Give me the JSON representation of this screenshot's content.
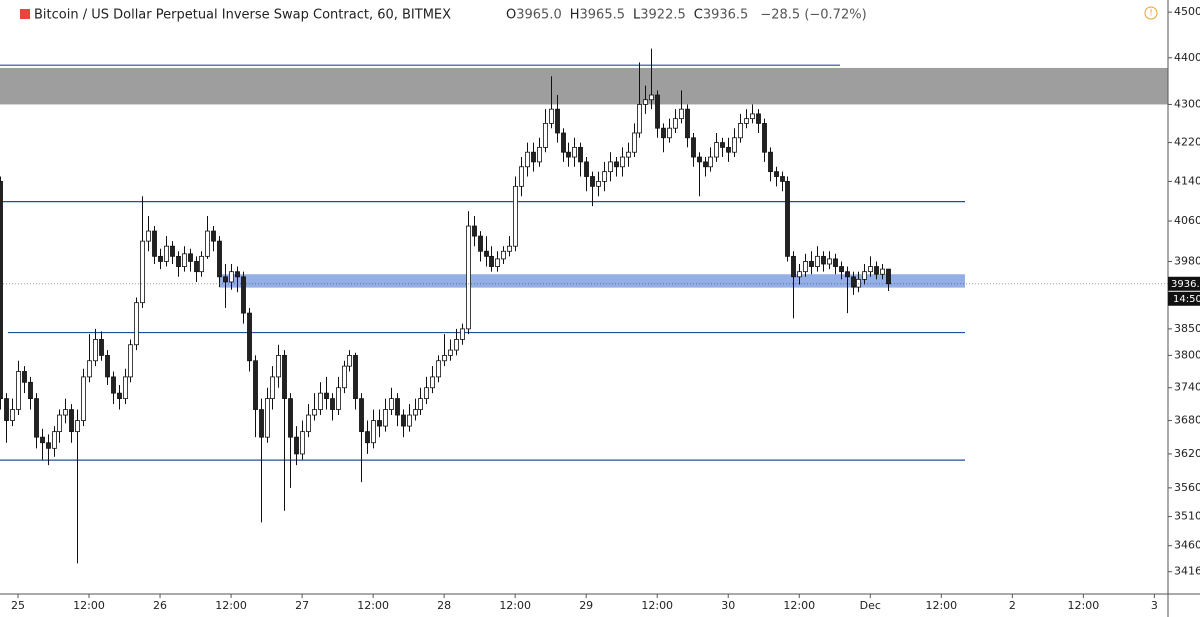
{
  "chart_data": {
    "type": "candlestick",
    "title": "Bitcoin / US Dollar Perpetual Inverse Swap Contract, 60, BITMEX",
    "ohlc_legend": [
      {
        "label": "O",
        "value": "3965.0"
      },
      {
        "label": "H",
        "value": "3965.5"
      },
      {
        "label": "L",
        "value": "3922.5"
      },
      {
        "label": "C",
        "value": "3936.5"
      }
    ],
    "change": "−28.5 (−0.72%)",
    "countdown": "14:50",
    "log_scale": true,
    "up_color": "#ffffff",
    "down_color": "#222222",
    "edge_color": "#111111",
    "level_color": "#1f4ea3",
    "zone_colors": [
      "#9e9e9e",
      "#94aee6"
    ],
    "levels": [
      4384,
      4099,
      3843,
      3609
    ],
    "zones": [
      [
        4300,
        4378
      ],
      [
        3929,
        3955
      ]
    ],
    "xlim": [
      -3.04,
      194.3
    ],
    "ylim": [
      3382,
      4527
    ],
    "xticks": [
      {
        "value": 0,
        "label": "25"
      },
      {
        "value": 12,
        "label": "12:00"
      },
      {
        "value": 24,
        "label": "26"
      },
      {
        "value": 36,
        "label": "12:00"
      },
      {
        "value": 48,
        "label": "27"
      },
      {
        "value": 60,
        "label": "12:00"
      },
      {
        "value": 72,
        "label": "28"
      },
      {
        "value": 84,
        "label": "12:00"
      },
      {
        "value": 96,
        "label": "29"
      },
      {
        "value": 108,
        "label": "12:00"
      },
      {
        "value": 120,
        "label": "30"
      },
      {
        "value": 132,
        "label": "12:00"
      },
      {
        "value": 144,
        "label": "Dec"
      },
      {
        "value": 156,
        "label": "12:00"
      },
      {
        "value": 168,
        "label": "2"
      },
      {
        "value": 180,
        "label": "12:00"
      },
      {
        "value": 192,
        "label": "3"
      }
    ],
    "yticks": [
      {
        "value": 4500,
        "label": "4500.0"
      },
      {
        "value": 4400,
        "label": "4400.0"
      },
      {
        "value": 4300,
        "label": "4300.0"
      },
      {
        "value": 4220,
        "label": "4220.0"
      },
      {
        "value": 4140,
        "label": "4140.0"
      },
      {
        "value": 4060,
        "label": "4060.0"
      },
      {
        "value": 3980,
        "label": "3980.0"
      },
      {
        "value": 3850,
        "label": "3850.0"
      },
      {
        "value": 3800,
        "label": "3800.0"
      },
      {
        "value": 3740,
        "label": "3740.0"
      },
      {
        "value": 3680,
        "label": "3680.0"
      },
      {
        "value": 3620,
        "label": "3620.0"
      },
      {
        "value": 3560,
        "label": "3560.0"
      },
      {
        "value": 3510,
        "label": "3510.0"
      },
      {
        "value": 3460,
        "label": "3460.0"
      },
      {
        "value": 3416,
        "label": "3416.0"
      }
    ],
    "x": [
      -3,
      -2,
      -1,
      0,
      1,
      2,
      3,
      4,
      5,
      6,
      7,
      8,
      9,
      10,
      11,
      12,
      13,
      14,
      15,
      16,
      17,
      18,
      19,
      20,
      21,
      22,
      23,
      24,
      25,
      26,
      27,
      28,
      29,
      30,
      31,
      32,
      33,
      34,
      35,
      36,
      37,
      38,
      39,
      40,
      41,
      42,
      43,
      44,
      45,
      46,
      47,
      48,
      49,
      50,
      51,
      52,
      53,
      54,
      55,
      56,
      57,
      58,
      59,
      60,
      61,
      62,
      63,
      64,
      65,
      66,
      67,
      68,
      69,
      70,
      71,
      72,
      73,
      74,
      75,
      76,
      77,
      78,
      79,
      80,
      81,
      82,
      83,
      84,
      85,
      86,
      87,
      88,
      89,
      90,
      91,
      92,
      93,
      94,
      95,
      96,
      97,
      98,
      99,
      100,
      101,
      102,
      103,
      104,
      105,
      106,
      107,
      108,
      109,
      110,
      111,
      112,
      113,
      114,
      115,
      116,
      117,
      118,
      119,
      120,
      121,
      122,
      123,
      124,
      125,
      126,
      127,
      128,
      129,
      130,
      131,
      132,
      133,
      134,
      135,
      136,
      137,
      138,
      139,
      140,
      141,
      142,
      143,
      144,
      145,
      146,
      147
    ],
    "open": [
      4140,
      3720,
      3680,
      3700,
      3770,
      3750,
      3720,
      3650,
      3640,
      3630,
      3660,
      3690,
      3700,
      3660,
      3680,
      3760,
      3790,
      3830,
      3800,
      3760,
      3730,
      3720,
      3760,
      3820,
      3900,
      4020,
      4040,
      3990,
      3980,
      4010,
      3990,
      3970,
      3995,
      3980,
      3960,
      3990,
      4040,
      4020,
      3950,
      3940,
      3960,
      3950,
      3880,
      3790,
      3700,
      3650,
      3720,
      3760,
      3800,
      3720,
      3650,
      3620,
      3660,
      3690,
      3700,
      3730,
      3720,
      3700,
      3740,
      3780,
      3800,
      3720,
      3660,
      3640,
      3680,
      3670,
      3700,
      3720,
      3690,
      3670,
      3690,
      3700,
      3720,
      3740,
      3760,
      3790,
      3800,
      3810,
      3830,
      3850,
      4050,
      4030,
      4000,
      3990,
      3970,
      3985,
      4000,
      4010,
      4130,
      4170,
      4200,
      4180,
      4210,
      4260,
      4290,
      4240,
      4200,
      4190,
      4210,
      4180,
      4150,
      4130,
      4140,
      4160,
      4180,
      4170,
      4190,
      4200,
      4240,
      4300,
      4310,
      4320,
      4250,
      4230,
      4250,
      4270,
      4290,
      4230,
      4190,
      4180,
      4170,
      4190,
      4220,
      4210,
      4200,
      4230,
      4260,
      4270,
      4280,
      4260,
      4200,
      4160,
      4150,
      4140,
      3990,
      3950,
      3960,
      3980,
      3970,
      3990,
      3975,
      3985,
      3970,
      3960,
      3950,
      3930,
      3945,
      3960,
      3970,
      3955,
      3965
    ],
    "high": [
      4150,
      3730,
      3720,
      3790,
      3780,
      3760,
      3730,
      3665,
      3655,
      3670,
      3700,
      3720,
      3710,
      3700,
      3775,
      3840,
      3850,
      3845,
      3810,
      3770,
      3745,
      3775,
      3830,
      3910,
      4110,
      4070,
      4050,
      4005,
      4030,
      4020,
      4000,
      4010,
      4005,
      3990,
      4000,
      4070,
      4050,
      4030,
      3975,
      3975,
      3970,
      3960,
      3890,
      3800,
      3720,
      3740,
      3780,
      3820,
      3810,
      3730,
      3670,
      3680,
      3710,
      3730,
      3750,
      3760,
      3730,
      3760,
      3790,
      3810,
      3805,
      3730,
      3680,
      3700,
      3700,
      3720,
      3740,
      3730,
      3700,
      3710,
      3720,
      3740,
      3760,
      3780,
      3800,
      3840,
      3830,
      3850,
      3860,
      4080,
      4070,
      4040,
      4030,
      4010,
      4000,
      4010,
      4030,
      4150,
      4190,
      4220,
      4220,
      4230,
      4290,
      4360,
      4320,
      4250,
      4220,
      4230,
      4220,
      4190,
      4160,
      4160,
      4180,
      4200,
      4190,
      4210,
      4220,
      4260,
      4390,
      4340,
      4420,
      4330,
      4260,
      4270,
      4290,
      4330,
      4300,
      4240,
      4200,
      4190,
      4210,
      4240,
      4230,
      4230,
      4250,
      4280,
      4290,
      4300,
      4290,
      4270,
      4210,
      4170,
      4160,
      4150,
      4000,
      3975,
      3995,
      4000,
      4010,
      4000,
      4000,
      3995,
      3980,
      3970,
      3960,
      3960,
      3975,
      3990,
      3980,
      3975,
      3965.5
    ],
    "low": [
      3700,
      3640,
      3670,
      3690,
      3730,
      3700,
      3630,
      3610,
      3600,
      3615,
      3640,
      3675,
      3640,
      3430,
      3670,
      3750,
      3780,
      3790,
      3745,
      3710,
      3700,
      3710,
      3750,
      3810,
      3890,
      4000,
      3975,
      3965,
      3970,
      3975,
      3950,
      3960,
      3960,
      3940,
      3950,
      3985,
      4000,
      3930,
      3890,
      3925,
      3920,
      3860,
      3770,
      3650,
      3500,
      3640,
      3700,
      3740,
      3520,
      3560,
      3600,
      3610,
      3650,
      3680,
      3690,
      3700,
      3680,
      3690,
      3730,
      3770,
      3700,
      3570,
      3620,
      3630,
      3650,
      3660,
      3690,
      3670,
      3650,
      3660,
      3680,
      3690,
      3710,
      3730,
      3750,
      3780,
      3790,
      3800,
      3820,
      3840,
      4010,
      3980,
      3970,
      3960,
      3960,
      3975,
      3990,
      4000,
      4110,
      4150,
      4160,
      4170,
      4200,
      4250,
      4220,
      4180,
      4170,
      4170,
      4150,
      4120,
      4090,
      4110,
      4120,
      4140,
      4150,
      4150,
      4170,
      4190,
      4230,
      4280,
      4290,
      4230,
      4200,
      4220,
      4240,
      4260,
      4210,
      4170,
      4110,
      4150,
      4160,
      4180,
      4190,
      4180,
      4190,
      4220,
      4250,
      4260,
      4240,
      4180,
      4140,
      4130,
      4120,
      3980,
      3870,
      3935,
      3950,
      3955,
      3960,
      3960,
      3965,
      3955,
      3945,
      3880,
      3915,
      3920,
      3935,
      3950,
      3945,
      3945,
      3922.5
    ],
    "close": [
      3720,
      3680,
      3700,
      3770,
      3750,
      3720,
      3650,
      3640,
      3630,
      3660,
      3690,
      3700,
      3660,
      3680,
      3760,
      3790,
      3830,
      3800,
      3760,
      3730,
      3720,
      3760,
      3820,
      3900,
      4020,
      4040,
      3990,
      3980,
      4010,
      3990,
      3970,
      3995,
      3980,
      3960,
      3990,
      4040,
      4020,
      3950,
      3940,
      3960,
      3950,
      3880,
      3790,
      3700,
      3650,
      3720,
      3760,
      3800,
      3720,
      3650,
      3620,
      3660,
      3690,
      3700,
      3730,
      3720,
      3700,
      3740,
      3780,
      3800,
      3720,
      3660,
      3640,
      3680,
      3670,
      3700,
      3720,
      3690,
      3670,
      3690,
      3700,
      3720,
      3740,
      3760,
      3790,
      3800,
      3810,
      3830,
      3850,
      4050,
      4030,
      4000,
      3990,
      3970,
      3985,
      4000,
      4010,
      4130,
      4170,
      4200,
      4180,
      4210,
      4260,
      4290,
      4240,
      4200,
      4190,
      4210,
      4180,
      4150,
      4130,
      4140,
      4160,
      4180,
      4170,
      4190,
      4200,
      4240,
      4300,
      4310,
      4320,
      4250,
      4230,
      4250,
      4270,
      4290,
      4230,
      4190,
      4180,
      4170,
      4190,
      4220,
      4210,
      4200,
      4230,
      4260,
      4270,
      4280,
      4260,
      4200,
      4160,
      4150,
      4140,
      3990,
      3950,
      3960,
      3980,
      3970,
      3990,
      3975,
      3985,
      3970,
      3960,
      3950,
      3930,
      3945,
      3960,
      3970,
      3955,
      3965,
      3936.5
    ]
  }
}
